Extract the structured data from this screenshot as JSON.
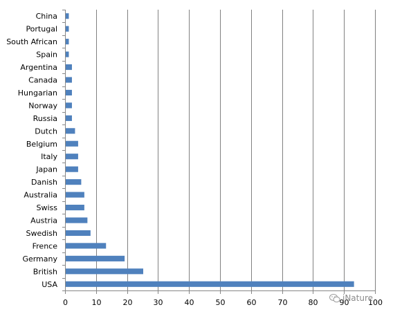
{
  "chart_data": {
    "type": "bar",
    "orientation": "horizontal",
    "categories": [
      "China",
      "Portugal",
      "South African",
      "Spain",
      "Argentina",
      "Canada",
      "Hungarian",
      "Norway",
      "Russia",
      "Dutch",
      "Belgium",
      "Italy",
      "Japan",
      "Danish",
      "Australia",
      "Swiss",
      "Austria",
      "Swedish",
      "Frence",
      "Germany",
      "British",
      "USA"
    ],
    "values": [
      1,
      1,
      1,
      1,
      2,
      2,
      2,
      2,
      2,
      3,
      4,
      4,
      4,
      5,
      6,
      6,
      7,
      8,
      13,
      19,
      25,
      93
    ],
    "xlim": [
      0,
      100
    ],
    "xticks": [
      0,
      10,
      20,
      30,
      40,
      50,
      60,
      70,
      80,
      90,
      100
    ],
    "grid": "vertical",
    "legend": "none",
    "bar_color": "#4f81bd",
    "grid_color": "#808080",
    "axis_color": "#868686",
    "title": "",
    "xlabel": "",
    "ylabel": ""
  },
  "watermark": {
    "text": "iNature",
    "icon": "wechat-icon"
  }
}
